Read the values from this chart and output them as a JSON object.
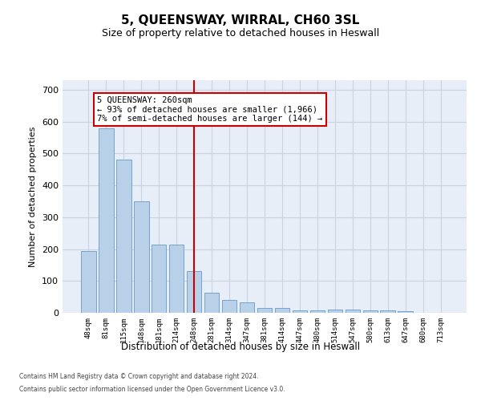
{
  "title": "5, QUEENSWAY, WIRRAL, CH60 3SL",
  "subtitle": "Size of property relative to detached houses in Heswall",
  "xlabel": "Distribution of detached houses by size in Heswall",
  "ylabel": "Number of detached properties",
  "categories": [
    "48sqm",
    "81sqm",
    "115sqm",
    "148sqm",
    "181sqm",
    "214sqm",
    "248sqm",
    "281sqm",
    "314sqm",
    "347sqm",
    "381sqm",
    "414sqm",
    "447sqm",
    "480sqm",
    "514sqm",
    "547sqm",
    "580sqm",
    "613sqm",
    "647sqm",
    "680sqm",
    "713sqm"
  ],
  "values": [
    193,
    578,
    481,
    350,
    215,
    215,
    130,
    62,
    40,
    33,
    15,
    15,
    8,
    8,
    10,
    10,
    8,
    7,
    5,
    0,
    0
  ],
  "bar_color": "#b8d0e8",
  "bar_edge_color": "#6699cc",
  "grid_color": "#c8d4e4",
  "background_color": "#e8eef8",
  "vline_x_index": 6,
  "vline_color": "#cc0000",
  "annotation_text": "5 QUEENSWAY: 260sqm\n← 93% of detached houses are smaller (1,966)\n7% of semi-detached houses are larger (144) →",
  "annotation_box_facecolor": "#ffffff",
  "annotation_box_edgecolor": "#cc0000",
  "ylim": [
    0,
    730
  ],
  "yticks": [
    0,
    100,
    200,
    300,
    400,
    500,
    600,
    700
  ],
  "footer1": "Contains HM Land Registry data © Crown copyright and database right 2024.",
  "footer2": "Contains public sector information licensed under the Open Government Licence v3.0."
}
